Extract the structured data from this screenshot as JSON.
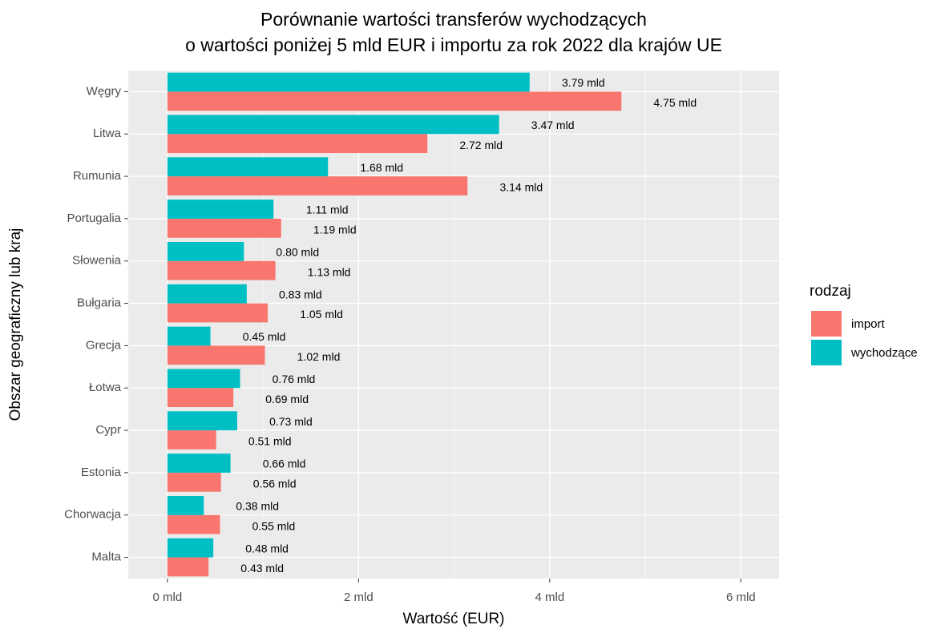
{
  "chart_data": {
    "type": "bar",
    "orientation": "horizontal",
    "title": [
      "Porównanie wartości transferów wychodzących",
      "o wartości poniżej 5 mld EUR i importu za rok 2022 dla krajów UE"
    ],
    "x_label": "Wartość (EUR)",
    "y_label": "Obszar geograficzny lub kraj",
    "legend_title": "rodzaj",
    "legend_position": "right",
    "categories": [
      "Węgry",
      "Litwa",
      "Rumunia",
      "Portugalia",
      "Słowenia",
      "Bułgaria",
      "Grecja",
      "Łotwa",
      "Cypr",
      "Estonia",
      "Chorwacja",
      "Malta"
    ],
    "series": [
      {
        "name": "import",
        "color": "#F8766D",
        "values": [
          4.75,
          2.72,
          3.14,
          1.19,
          1.13,
          1.05,
          1.02,
          0.69,
          0.51,
          0.56,
          0.55,
          0.43
        ],
        "value_labels": [
          "4.75 mld",
          "2.72 mld",
          "3.14 mld",
          "1.19 mld",
          "1.13 mld",
          "1.05 mld",
          "1.02 mld",
          "0.69 mld",
          "0.51 mld",
          "0.56 mld",
          "0.55 mld",
          "0.43 mld"
        ]
      },
      {
        "name": "wychodzące",
        "color": "#00BFC4",
        "values": [
          3.79,
          3.47,
          1.68,
          1.11,
          0.8,
          0.83,
          0.45,
          0.76,
          0.73,
          0.66,
          0.38,
          0.48
        ],
        "value_labels": [
          "3.79 mld",
          "3.47 mld",
          "1.68 mld",
          "1.11 mld",
          "0.80 mld",
          "0.83 mld",
          "0.45 mld",
          "0.76 mld",
          "0.73 mld",
          "0.66 mld",
          "0.38 mld",
          "0.48 mld"
        ]
      }
    ],
    "xlim": [
      -0.41,
      6.4
    ],
    "xticks": [
      {
        "value": 0,
        "label": "0 mld"
      },
      {
        "value": 2,
        "label": "2 mld"
      },
      {
        "value": 4,
        "label": "4 mld"
      },
      {
        "value": 6,
        "label": "6 mld"
      }
    ],
    "x_minor_ticks": [
      1,
      3,
      5
    ],
    "grid": true,
    "panel_color": "#EBEBEB"
  }
}
